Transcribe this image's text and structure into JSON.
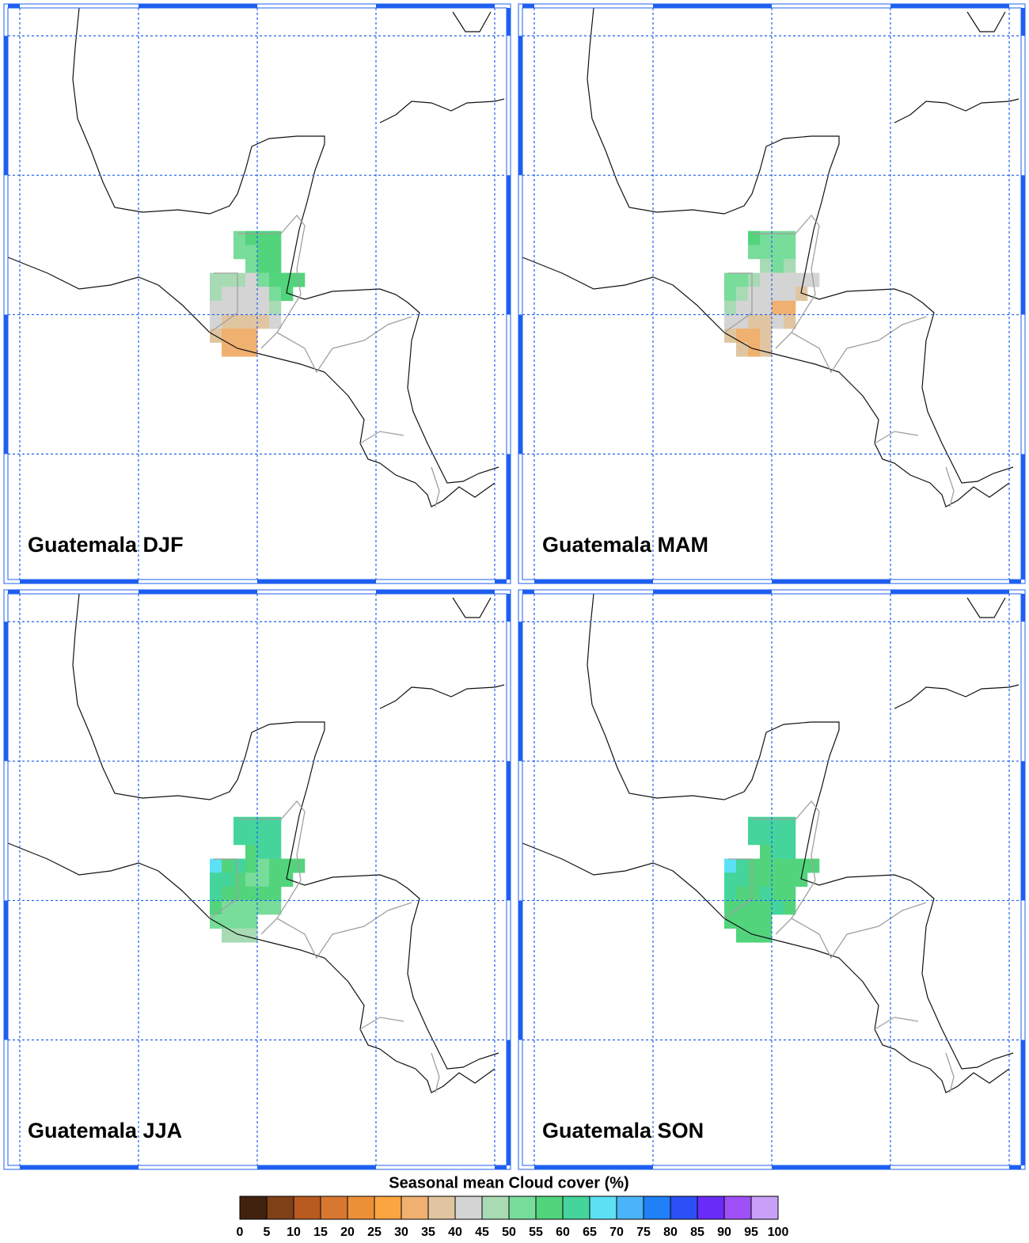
{
  "chart_data": {
    "type": "heatmap",
    "xlim": [
      -100.5,
      -79.5
    ],
    "ylim": [
      5.5,
      26
    ],
    "xticks": [
      -100,
      -95,
      -90,
      -85,
      -80
    ],
    "yticks": [
      10,
      15,
      20,
      25
    ],
    "grid": true,
    "cell_size": 0.5,
    "cell_lon": [
      -91,
      -90.5,
      -90,
      -89.5,
      -91,
      -90.5,
      -90,
      -89.5,
      -90.5,
      -90,
      -89.5,
      -92,
      -91.5,
      -91,
      -90.5,
      -90,
      -89.5,
      -89,
      -88.5,
      -92,
      -91.5,
      -91,
      -90.5,
      -90,
      -89.5,
      -89,
      -92,
      -91.5,
      -91,
      -90.5,
      -90,
      -89.5,
      -92,
      -91.5,
      -91,
      -90.5,
      -90,
      -89.5,
      -92,
      -91.5,
      -91,
      -90.5,
      -91.5,
      -91,
      -90.5
    ],
    "cell_lat": [
      17.5,
      17.5,
      17.5,
      17.5,
      17,
      17,
      17,
      17,
      16.5,
      16.5,
      16.5,
      16,
      16,
      16,
      16,
      16,
      16,
      16,
      16,
      15.5,
      15.5,
      15.5,
      15.5,
      15.5,
      15.5,
      15.5,
      15,
      15,
      15,
      15,
      15,
      15,
      14.5,
      14.5,
      14.5,
      14.5,
      14.5,
      14.5,
      14,
      14,
      14,
      14,
      13.5,
      13.5,
      13.5
    ],
    "panels": [
      {
        "title": "Guatemala DJF",
        "values": [
          50,
          55,
          55,
          55,
          50,
          50,
          55,
          55,
          50,
          55,
          55,
          45,
          45,
          45,
          40,
          50,
          55,
          55,
          55,
          45,
          40,
          40,
          40,
          40,
          50,
          55,
          40,
          40,
          40,
          40,
          40,
          45,
          40,
          35,
          35,
          35,
          35,
          40,
          35,
          30,
          30,
          30,
          30,
          30,
          30
        ]
      },
      {
        "title": "Guatemala MAM",
        "values": [
          55,
          50,
          50,
          50,
          50,
          50,
          50,
          50,
          45,
          50,
          45,
          50,
          50,
          45,
          40,
          40,
          40,
          40,
          40,
          50,
          45,
          40,
          40,
          40,
          40,
          35,
          45,
          40,
          40,
          40,
          30,
          30,
          40,
          40,
          35,
          35,
          40,
          35,
          35,
          30,
          30,
          35,
          35,
          30,
          35
        ]
      },
      {
        "title": "Guatemala JJA",
        "values": [
          60,
          60,
          60,
          60,
          60,
          60,
          60,
          60,
          55,
          60,
          60,
          65,
          55,
          60,
          55,
          50,
          55,
          55,
          55,
          60,
          60,
          55,
          50,
          50,
          55,
          55,
          60,
          55,
          55,
          55,
          55,
          55,
          55,
          50,
          50,
          50,
          50,
          50,
          50,
          50,
          50,
          50,
          45,
          45,
          45
        ]
      },
      {
        "title": "Guatemala SON",
        "values": [
          60,
          60,
          60,
          60,
          60,
          60,
          60,
          60,
          55,
          60,
          60,
          65,
          60,
          55,
          55,
          55,
          55,
          55,
          55,
          60,
          60,
          55,
          55,
          55,
          55,
          55,
          60,
          55,
          55,
          60,
          55,
          55,
          55,
          55,
          55,
          55,
          60,
          55,
          55,
          55,
          55,
          55,
          55,
          55,
          55
        ]
      }
    ],
    "colorbar": {
      "title": "Seasonal mean Cloud cover (%)",
      "levels": [
        0,
        5,
        10,
        15,
        20,
        25,
        30,
        35,
        40,
        45,
        50,
        55,
        60,
        65,
        70,
        75,
        80,
        85,
        90,
        95,
        100
      ],
      "colors": [
        "#40220f",
        "#804018",
        "#b85a20",
        "#d87830",
        "#ec9038",
        "#fba541",
        "#f0b070",
        "#e0c6a0",
        "#d4d4d4",
        "#a8dbb4",
        "#78dc9a",
        "#52d47c",
        "#44d49c",
        "#5ce0f4",
        "#4ab4f8",
        "#2080f8",
        "#2c50f8",
        "#6a2cf8",
        "#a050f8",
        "#c8a0f8"
      ]
    }
  }
}
